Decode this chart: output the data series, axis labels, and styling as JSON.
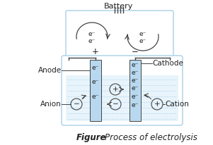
{
  "title": "Battery",
  "figure_label": "Figure",
  "figure_caption": "Process of electrolysis",
  "bg_color": "#ffffff",
  "light_blue_border": "#a8d0e8",
  "electrode_blue": "#b8d8f0",
  "water_blue": "#e8f4fb",
  "water_line": "#b8d8ee",
  "line_color": "#444444",
  "text_color": "#222222",
  "arrow_color": "#333333"
}
